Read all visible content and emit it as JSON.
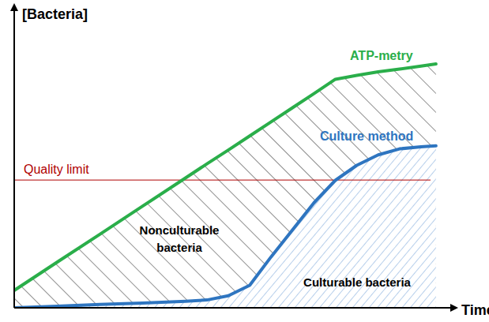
{
  "chart_data": {
    "type": "line",
    "y_label": "[Bacteria]",
    "x_label": "Time",
    "x": [
      0,
      10,
      20,
      30,
      40,
      45,
      50,
      55,
      60,
      65,
      70,
      75,
      80,
      85,
      90,
      95,
      98.5
    ],
    "series": [
      {
        "name": "ATP-metry",
        "color": "#2aae4a",
        "values": [
          5.8,
          15.2,
          24.5,
          33.9,
          43.3,
          48,
          52.6,
          57.3,
          62,
          66.7,
          71.4,
          76.2,
          77.5,
          78.7,
          79.6,
          80.6,
          81.3
        ]
      },
      {
        "name": "Culture method",
        "color": "#2e75c0",
        "values": [
          0,
          0.5,
          1.1,
          1.6,
          2.2,
          2.6,
          4,
          7.5,
          17,
          26,
          35,
          42.5,
          47.5,
          51,
          53,
          53.7,
          54
        ]
      }
    ],
    "reference_lines": [
      {
        "label": "Quality limit",
        "value": 42.6,
        "color": "#b00000"
      }
    ],
    "annotations": [
      "Nonculturable bacteria",
      "Culturable bacteria"
    ],
    "xlim": [
      0,
      100
    ],
    "ylim": [
      0,
      100
    ],
    "tick_labels": false,
    "grid": false
  }
}
